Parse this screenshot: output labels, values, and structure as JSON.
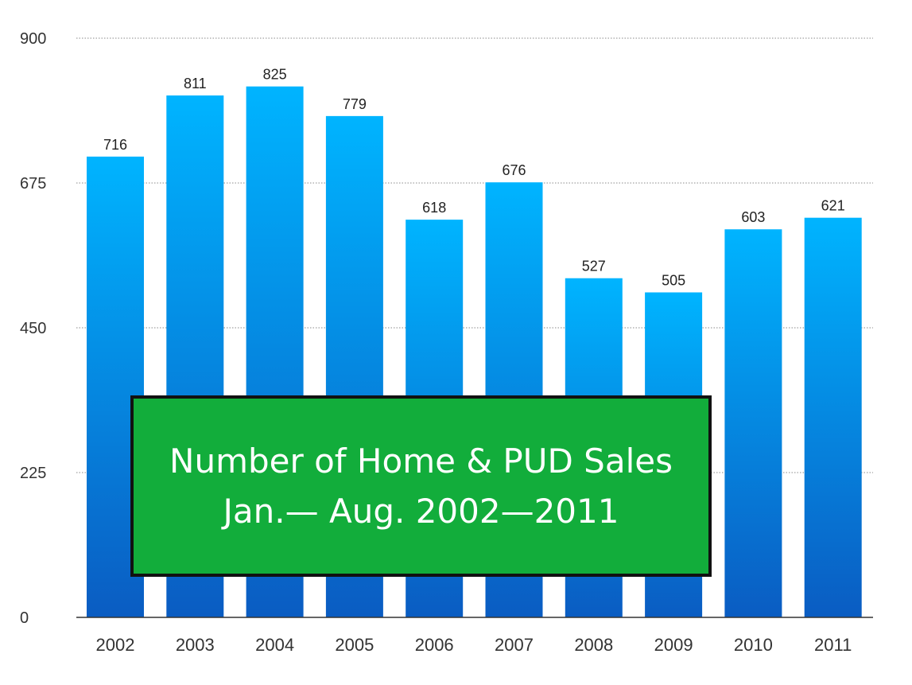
{
  "chart_data": {
    "type": "bar",
    "title": "Number of Home & PUD Sales",
    "subtitle": "Jan.— Aug. 2002—2011",
    "categories": [
      "2002",
      "2003",
      "2004",
      "2005",
      "2006",
      "2007",
      "2008",
      "2009",
      "2010",
      "2011"
    ],
    "values": [
      716,
      811,
      825,
      779,
      618,
      676,
      527,
      505,
      603,
      621
    ],
    "yticks": [
      "0",
      "225",
      "450",
      "675",
      "900"
    ],
    "ylim": [
      0,
      900
    ],
    "xlabel": "",
    "ylabel": "",
    "grid": true,
    "data_labels": true,
    "colors": {
      "bar_top": "#00b4ff",
      "bar_bottom": "#0a5cc2",
      "title_box": "#12ad3b",
      "title_text": "#ffffff"
    }
  }
}
